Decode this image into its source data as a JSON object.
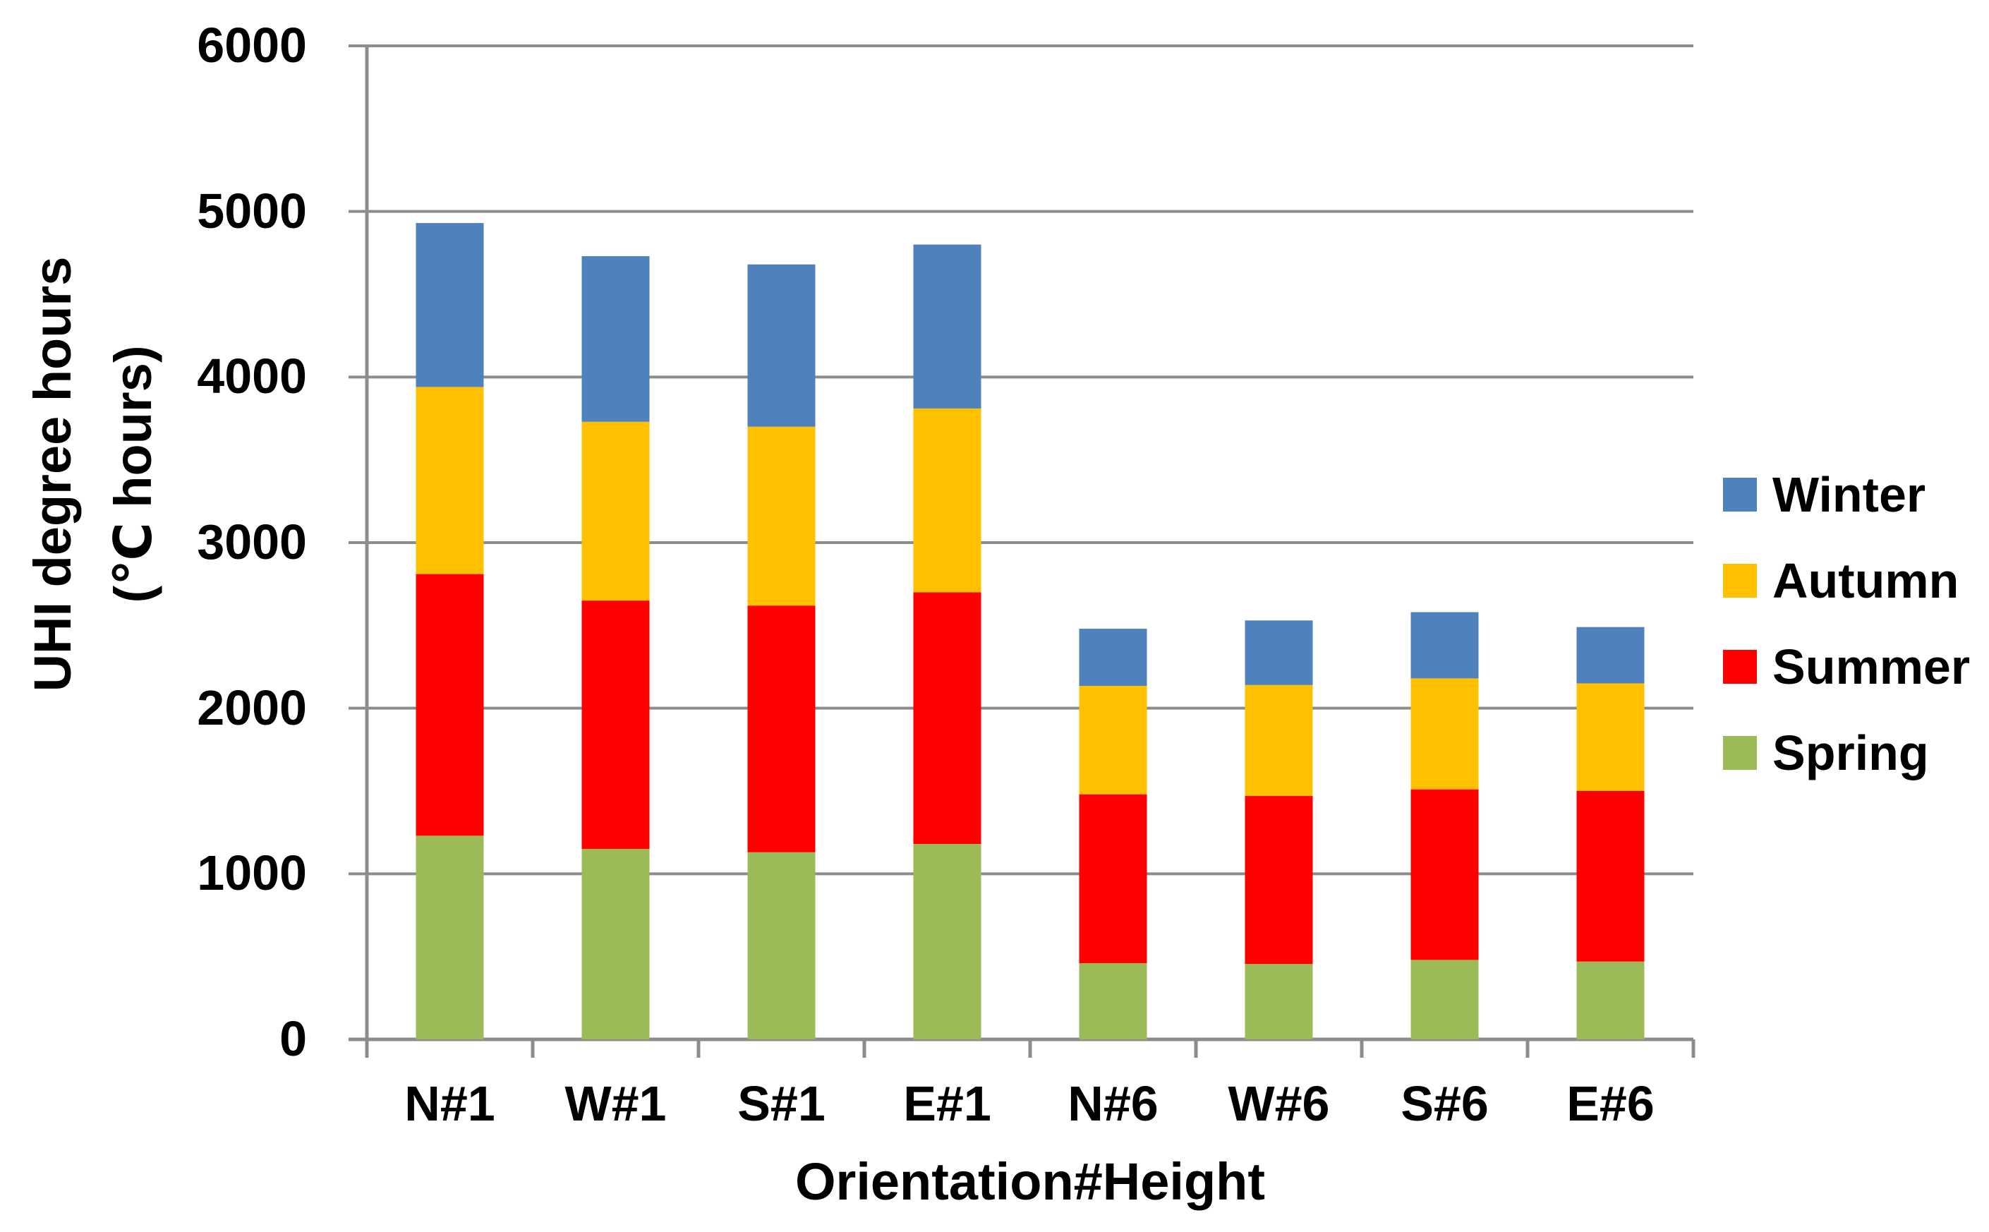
{
  "chart_data": {
    "type": "bar",
    "stacked": true,
    "categories": [
      "N#1",
      "W#1",
      "S#1",
      "E#1",
      "N#6",
      "W#6",
      "S#6",
      "E#6"
    ],
    "series": [
      {
        "name": "Spring",
        "color": "#9BBB59",
        "values": [
          1230,
          1150,
          1130,
          1180,
          460,
          455,
          480,
          470
        ]
      },
      {
        "name": "Summer",
        "color": "#FF0000",
        "values": [
          1580,
          1500,
          1490,
          1520,
          1020,
          1015,
          1030,
          1030
        ]
      },
      {
        "name": "Autumn",
        "color": "#FFC000",
        "values": [
          1130,
          1080,
          1080,
          1110,
          655,
          670,
          670,
          650
        ]
      },
      {
        "name": "Winter",
        "color": "#4F81BD",
        "values": [
          990,
          1000,
          980,
          990,
          345,
          390,
          400,
          340
        ]
      }
    ],
    "stack_totals": [
      4930,
      4730,
      4680,
      4800,
      2480,
      2530,
      2580,
      2490
    ],
    "legend_order_top_to_bottom": [
      "Winter",
      "Autumn",
      "Summer",
      "Spring"
    ],
    "legend_position": "right",
    "title": "",
    "xlabel": "Orientation#Height",
    "ylabel_line1": "UHI degree hours",
    "ylabel_line2": "(℃ hours)",
    "ylim": [
      0,
      6000
    ],
    "ytick_step": 1000,
    "ytick_labels": [
      "0",
      "1000",
      "2000",
      "3000",
      "4000",
      "5000",
      "6000"
    ],
    "grid": "horizontal",
    "grid_color": "#8C8C8C",
    "axis_color": "#8C8C8C",
    "text_color": "#000000",
    "background": "#FFFFFF"
  }
}
